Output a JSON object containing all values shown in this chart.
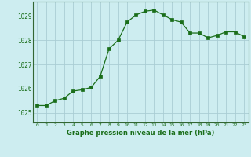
{
  "x": [
    0,
    1,
    2,
    3,
    4,
    5,
    6,
    7,
    8,
    9,
    10,
    11,
    12,
    13,
    14,
    15,
    16,
    17,
    18,
    19,
    20,
    21,
    22,
    23
  ],
  "y": [
    1025.3,
    1025.3,
    1025.5,
    1025.6,
    1025.9,
    1025.95,
    1026.05,
    1026.5,
    1027.65,
    1028.0,
    1028.75,
    1029.05,
    1029.2,
    1029.25,
    1029.05,
    1028.85,
    1028.75,
    1028.3,
    1028.3,
    1028.1,
    1028.2,
    1028.35,
    1028.35,
    1028.15
  ],
  "line_color": "#1a6e1a",
  "marker_color": "#1a6e1a",
  "bg_color": "#cdedf0",
  "grid_color": "#aacdd4",
  "xlabel": "Graphe pression niveau de la mer (hPa)",
  "xlabel_color": "#1a6e1a",
  "tick_color": "#1a6e1a",
  "ylim": [
    1024.6,
    1029.6
  ],
  "yticks": [
    1025,
    1026,
    1027,
    1028,
    1029
  ],
  "xticks": [
    0,
    1,
    2,
    3,
    4,
    5,
    6,
    7,
    8,
    9,
    10,
    11,
    12,
    13,
    14,
    15,
    16,
    17,
    18,
    19,
    20,
    21,
    22,
    23
  ]
}
